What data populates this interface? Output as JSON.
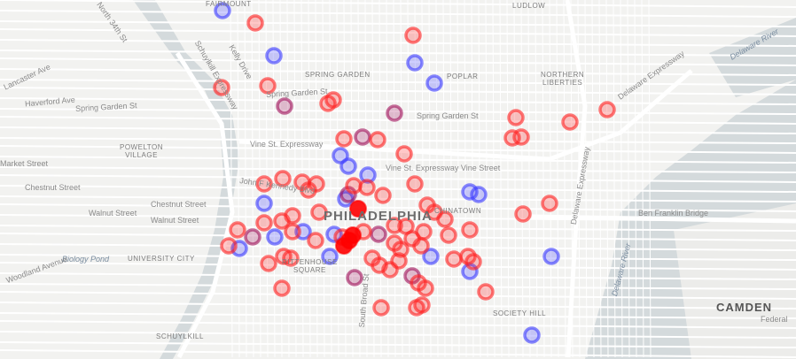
{
  "map": {
    "labels": {
      "fairmount": "FAIRMOUNT",
      "ludlow": "LUDLOW",
      "spring_garden": "SPRING GARDEN",
      "northern_liberties": "NORTHERN\nLIBERTIES",
      "poplar": "POPLAR",
      "spring_garden_st": "Spring Garden St",
      "spring_garden_st_2": "Spring Garden St",
      "haverford": "Haverford Ave",
      "lancaster": "Lancaster Ave",
      "powelton": "POWELTON\nVILLAGE",
      "market": "Market Street",
      "chestnut": "Chestnut Street",
      "chestnut_2": "Chestnut Street",
      "walnut": "Walnut Street",
      "walnut_2": "Walnut Street",
      "vine": "Vine St. Expressway",
      "vine_2": "Vine St. Expressway Vine Street",
      "philadelphia": "PHILADELPHIA",
      "chinatown": "CHINATOWN",
      "university_city": "UNIVERSITY CITY",
      "biology_pond": "Biology Pond",
      "rittenhouse": "RITTENHOUSE\nSQUARE",
      "society_hill": "SOCIETY HILL",
      "schuylkill": "SCHUYLKILL",
      "camden": "CAMDEN",
      "delaware_expy": "Delaware Expressway",
      "delaware_expy_2": "Delaware Expressway",
      "ben_franklin": "Ben Franklin Bridge",
      "delaware_river": "Delaware River",
      "delaware_river_2": "Delaware River",
      "schuylkill_expy": "Schuylkill Expressway",
      "n34": "North 34th St",
      "kelly": "Kelly Drive",
      "jfk": "John F Kennedy Blvd",
      "broad": "South Broad St",
      "woodland": "Woodland Avenue",
      "federal": "Federal"
    },
    "marker_colors": {
      "red": "#ff2020",
      "blue": "#3a3aff",
      "purple": "#a0105a",
      "solid": "#ff0000"
    }
  }
}
